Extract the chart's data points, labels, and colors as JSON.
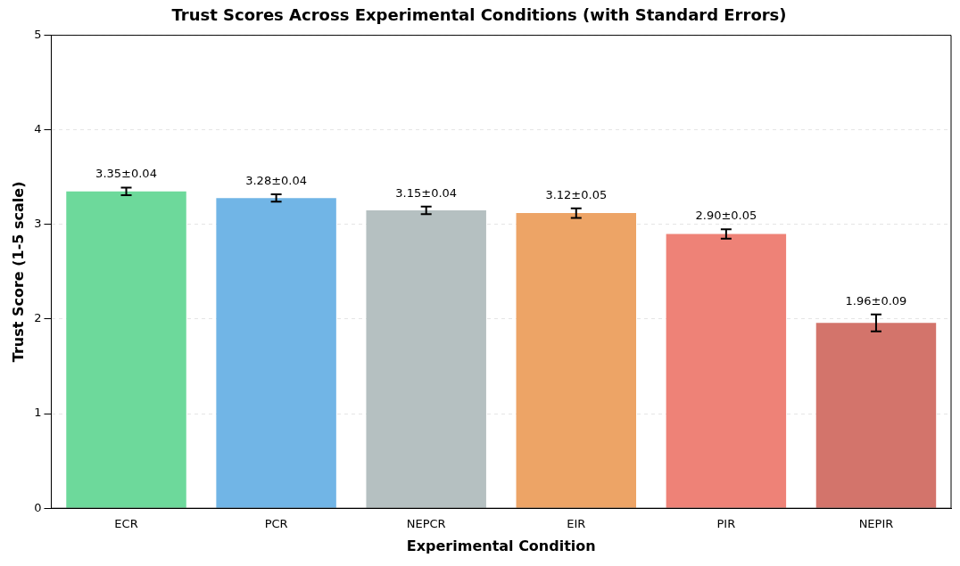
{
  "chart_data": {
    "type": "bar",
    "title": "Trust Scores Across Experimental Conditions (with Standard Errors)",
    "xlabel": "Experimental Condition",
    "ylabel": "Trust Score (1-5 scale)",
    "categories": [
      "ECR",
      "PCR",
      "NEPCR",
      "EIR",
      "PIR",
      "NEPIR"
    ],
    "values": [
      3.35,
      3.28,
      3.15,
      3.12,
      2.9,
      1.96
    ],
    "errors": [
      0.04,
      0.04,
      0.04,
      0.05,
      0.05,
      0.09
    ],
    "value_labels": [
      "3.35±0.04",
      "3.28±0.04",
      "3.15±0.04",
      "3.12±0.05",
      "2.90±0.05",
      "1.96±0.09"
    ],
    "colors": [
      "#6dd99b",
      "#71b5e6",
      "#b5c0c1",
      "#eda466",
      "#ee8277",
      "#d3746b"
    ],
    "ylim": [
      0,
      5
    ],
    "yticks": [
      0,
      1,
      2,
      3,
      4,
      5
    ],
    "grid": "y"
  }
}
